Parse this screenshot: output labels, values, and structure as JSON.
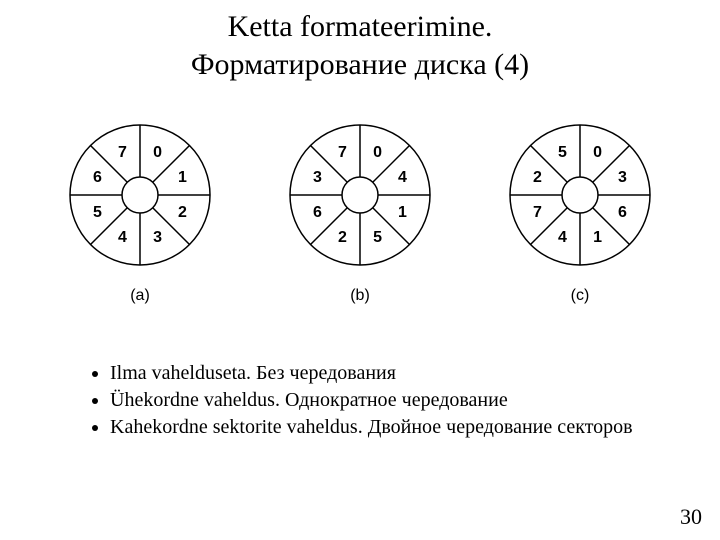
{
  "title_line1": "Ketta formateerimine.",
  "title_line2": "Форматирование диска (4)",
  "page_number": "30",
  "bullets": [
    "Ilma vahelduseta. Без чередования",
    "Ühekordne vaheldus. Однократное чередование",
    "Kahekordne sektorite vaheldus. Двойное чередование секторов"
  ],
  "disks": [
    {
      "caption": "(a)",
      "sectors": [
        "0",
        "1",
        "2",
        "3",
        "4",
        "5",
        "6",
        "7"
      ]
    },
    {
      "caption": "(b)",
      "sectors": [
        "0",
        "4",
        "1",
        "5",
        "2",
        "6",
        "3",
        "7"
      ]
    },
    {
      "caption": "(c)",
      "sectors": [
        "0",
        "3",
        "6",
        "1",
        "4",
        "7",
        "2",
        "5"
      ]
    }
  ],
  "style": {
    "disk_outer_radius": 70,
    "disk_inner_radius": 18,
    "label_radius": 46,
    "stroke_color": "#000000",
    "stroke_width": 1.5,
    "fill_color": "#ffffff",
    "num_sectors": 8,
    "start_angle_deg": -90,
    "label_fontsize": 16,
    "label_fontfamily": "Arial, Helvetica, sans-serif",
    "label_fontweight": "bold"
  }
}
